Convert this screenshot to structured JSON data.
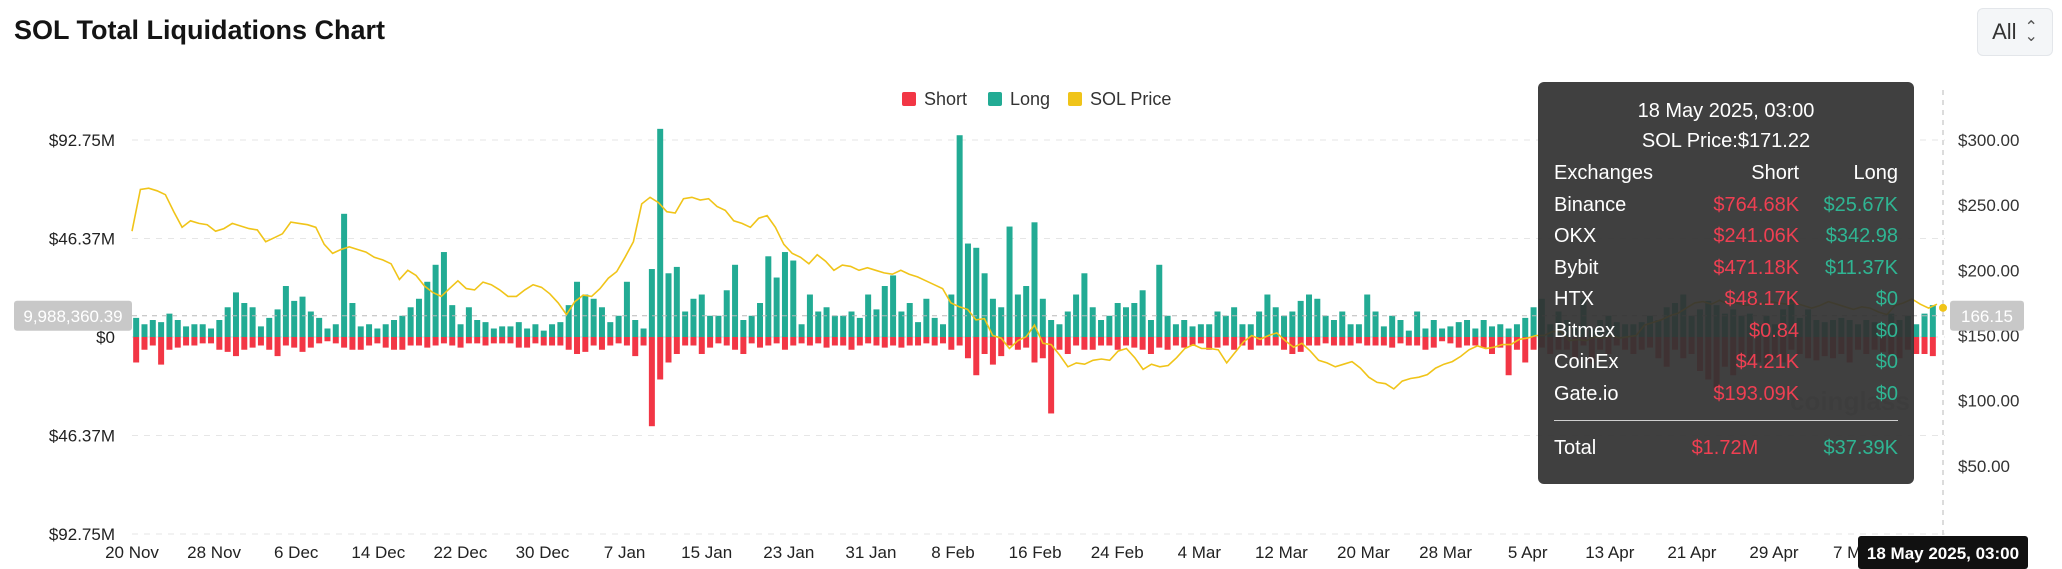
{
  "header": {
    "title": "SOL Total Liquidations Chart",
    "range_select_value": "All"
  },
  "watermark": "coinglass",
  "chart_data": {
    "type": "bar",
    "title": "SOL Total Liquidations Chart",
    "legend": {
      "placement": "top-center",
      "entries": [
        {
          "name": "Short",
          "color": "#f23645"
        },
        {
          "name": "Long",
          "color": "#22ab94"
        },
        {
          "name": "SOL Price",
          "color": "#f0c419"
        }
      ]
    },
    "left_axis": {
      "ticks": [
        "$92.75M",
        "$46.37M",
        "$0",
        "$46.37M",
        "$92.75M"
      ],
      "range": [
        -92.75,
        92.75
      ],
      "unit": "M"
    },
    "right_axis": {
      "ticks": [
        "$300.00",
        "$250.00",
        "$200.00",
        "$150.00",
        "$100.00",
        "$50.00"
      ],
      "range": [
        0,
        300
      ]
    },
    "x_ticks": [
      "20 Nov",
      "28 Nov",
      "6 Dec",
      "14 Dec",
      "22 Dec",
      "30 Dec",
      "7 Jan",
      "15 Jan",
      "23 Jan",
      "31 Jan",
      "8 Feb",
      "16 Feb",
      "24 Feb",
      "4 Mar",
      "12 Mar",
      "20 Mar",
      "28 Mar",
      "5 Apr",
      "13 Apr",
      "21 Apr",
      "29 Apr",
      "7 May"
    ],
    "crosshair": {
      "left_label": "9,988,360.39",
      "right_label": "166.15",
      "x_label": "18 May 2025, 03:00"
    },
    "series": [
      {
        "name": "Long",
        "values": [
          9,
          6,
          8,
          7,
          11,
          8,
          5,
          6,
          6,
          4,
          8,
          14,
          21,
          16,
          14,
          5,
          9,
          13,
          24,
          17,
          19,
          12,
          9,
          4,
          6,
          58,
          16,
          5,
          6,
          4,
          6,
          8,
          10,
          14,
          18,
          26,
          34,
          40,
          15,
          6,
          14,
          8,
          7,
          4,
          5,
          5,
          7,
          4,
          6,
          3,
          6,
          7,
          15,
          26,
          20,
          18,
          14,
          7,
          10,
          26,
          8,
          4,
          32,
          98,
          30,
          33,
          12,
          18,
          20,
          10,
          10,
          22,
          34,
          8,
          10,
          16,
          38,
          28,
          40,
          36,
          6,
          20,
          12,
          14,
          10,
          10,
          12,
          9,
          20,
          13,
          24,
          29,
          12,
          16,
          7,
          18,
          9,
          6,
          20,
          95,
          44,
          42,
          30,
          18,
          14,
          52,
          20,
          24,
          54,
          18,
          8,
          6,
          12,
          20,
          30,
          14,
          8,
          10,
          16,
          14,
          16,
          22,
          8,
          34,
          10,
          6,
          8,
          5,
          6,
          6,
          12,
          10,
          14,
          6,
          6,
          12,
          20,
          14,
          10,
          12,
          17,
          20,
          18,
          10,
          8,
          12,
          6,
          6,
          20,
          12,
          5,
          10,
          8,
          3,
          12,
          4,
          8,
          4,
          5,
          7,
          8,
          4,
          8,
          5,
          6,
          4,
          6,
          9,
          14,
          18,
          6,
          12,
          8,
          4,
          18,
          4,
          8,
          10,
          7,
          6,
          6,
          7,
          10,
          8,
          14,
          16,
          20,
          10,
          13,
          17,
          15,
          11,
          13,
          10,
          11,
          6,
          10,
          6,
          13,
          20,
          9,
          13,
          8,
          7,
          8,
          9,
          8,
          6,
          8,
          7,
          6,
          11,
          8,
          10,
          6,
          11,
          15
        ],
        "color": "#22ab94"
      },
      {
        "name": "Short",
        "values": [
          12,
          6,
          4,
          13,
          6,
          5,
          4,
          4,
          3,
          3,
          6,
          7,
          9,
          6,
          5,
          4,
          6,
          9,
          4,
          5,
          7,
          5,
          3,
          2,
          3,
          5,
          6,
          6,
          4,
          3,
          5,
          6,
          6,
          4,
          4,
          5,
          4,
          3,
          4,
          5,
          3,
          3,
          4,
          3,
          3,
          3,
          5,
          5,
          3,
          4,
          4,
          4,
          6,
          8,
          7,
          4,
          6,
          4,
          3,
          4,
          9,
          4,
          42,
          20,
          12,
          8,
          4,
          4,
          8,
          5,
          3,
          4,
          6,
          8,
          3,
          5,
          4,
          3,
          6,
          4,
          3,
          4,
          3,
          5,
          4,
          4,
          6,
          4,
          3,
          4,
          5,
          4,
          5,
          4,
          4,
          3,
          4,
          3,
          6,
          4,
          10,
          18,
          8,
          13,
          9,
          4,
          6,
          5,
          12,
          10,
          36,
          6,
          8,
          4,
          6,
          6,
          4,
          4,
          6,
          4,
          5,
          6,
          8,
          5,
          6,
          4,
          5,
          4,
          3,
          6,
          5,
          4,
          6,
          4,
          6,
          4,
          4,
          4,
          6,
          8,
          7,
          4,
          4,
          3,
          4,
          4,
          4,
          3,
          4,
          4,
          4,
          5,
          3,
          4,
          4,
          6,
          5,
          2,
          3,
          5,
          4,
          4,
          5,
          8,
          5,
          18,
          6,
          12,
          6,
          5,
          8,
          6,
          6,
          10,
          4,
          12,
          6,
          8,
          4,
          6,
          8,
          6,
          5,
          10,
          14,
          6,
          10,
          8,
          16,
          20,
          24,
          14,
          18,
          10,
          12,
          12,
          14,
          10,
          12,
          6,
          8,
          10,
          11,
          9,
          10,
          8,
          12,
          6,
          8,
          6,
          7,
          8,
          10,
          6,
          8,
          8,
          9
        ],
        "color": "#f23645"
      },
      {
        "name": "SOL Price",
        "values": [
          230,
          262,
          263,
          261,
          258,
          245,
          233,
          238,
          236,
          235,
          230,
          232,
          236,
          234,
          232,
          231,
          222,
          225,
          228,
          237,
          236,
          235,
          233,
          220,
          213,
          216,
          218,
          216,
          214,
          210,
          208,
          205,
          193,
          200,
          196,
          188,
          183,
          180,
          186,
          192,
          186,
          185,
          191,
          189,
          185,
          180,
          180,
          185,
          189,
          187,
          182,
          175,
          166,
          176,
          181,
          180,
          186,
          194,
          199,
          210,
          222,
          251,
          256,
          252,
          245,
          244,
          255,
          256,
          254,
          255,
          249,
          246,
          238,
          236,
          233,
          240,
          242,
          233,
          220,
          213,
          210,
          205,
          212,
          207,
          200,
          204,
          203,
          200,
          202,
          200,
          198,
          197,
          200,
          197,
          195,
          192,
          189,
          186,
          175,
          172,
          170,
          162,
          163,
          150,
          148,
          140,
          146,
          149,
          158,
          144,
          143,
          135,
          126,
          129,
          128,
          131,
          132,
          131,
          138,
          140,
          133,
          124,
          128,
          126,
          127,
          133,
          140,
          143,
          140,
          140,
          139,
          129,
          137,
          145,
          150,
          147,
          150,
          152,
          146,
          141,
          144,
          138,
          131,
          129,
          126,
          128,
          130,
          125,
          118,
          114,
          113,
          109,
          115,
          117,
          118,
          120,
          125,
          128,
          130,
          134,
          139,
          142,
          140,
          141,
          143,
          143,
          147,
          148,
          150,
          150,
          153,
          153,
          146,
          147,
          146,
          149,
          148,
          150,
          148,
          149,
          150,
          158,
          160,
          162,
          165,
          167,
          171,
          175,
          176,
          174,
          177,
          174,
          175,
          173,
          174,
          174,
          176,
          175,
          174,
          175,
          173,
          171,
          173,
          176,
          174,
          172,
          170,
          172,
          171,
          168,
          166,
          173,
          175,
          178,
          174,
          171,
          174
        ],
        "color": "#f0c419"
      }
    ]
  },
  "tooltip": {
    "date": "18 May 2025, 03:00",
    "price_line": "SOL Price:$171.22",
    "header": {
      "exchange": "Exchanges",
      "short": "Short",
      "long": "Long"
    },
    "rows": [
      {
        "exchange": "Binance",
        "short": "$764.68K",
        "long": "$25.67K"
      },
      {
        "exchange": "OKX",
        "short": "$241.06K",
        "long": "$342.98"
      },
      {
        "exchange": "Bybit",
        "short": "$471.18K",
        "long": "$11.37K"
      },
      {
        "exchange": "HTX",
        "short": "$48.17K",
        "long": "$0"
      },
      {
        "exchange": "Bitmex",
        "short": "$0.84",
        "long": "$0"
      },
      {
        "exchange": "CoinEx",
        "short": "$4.21K",
        "long": "$0"
      },
      {
        "exchange": "Gate.io",
        "short": "$193.09K",
        "long": "$0"
      }
    ],
    "total": {
      "label": "Total",
      "short": "$1.72M",
      "long": "$37.39K"
    }
  }
}
